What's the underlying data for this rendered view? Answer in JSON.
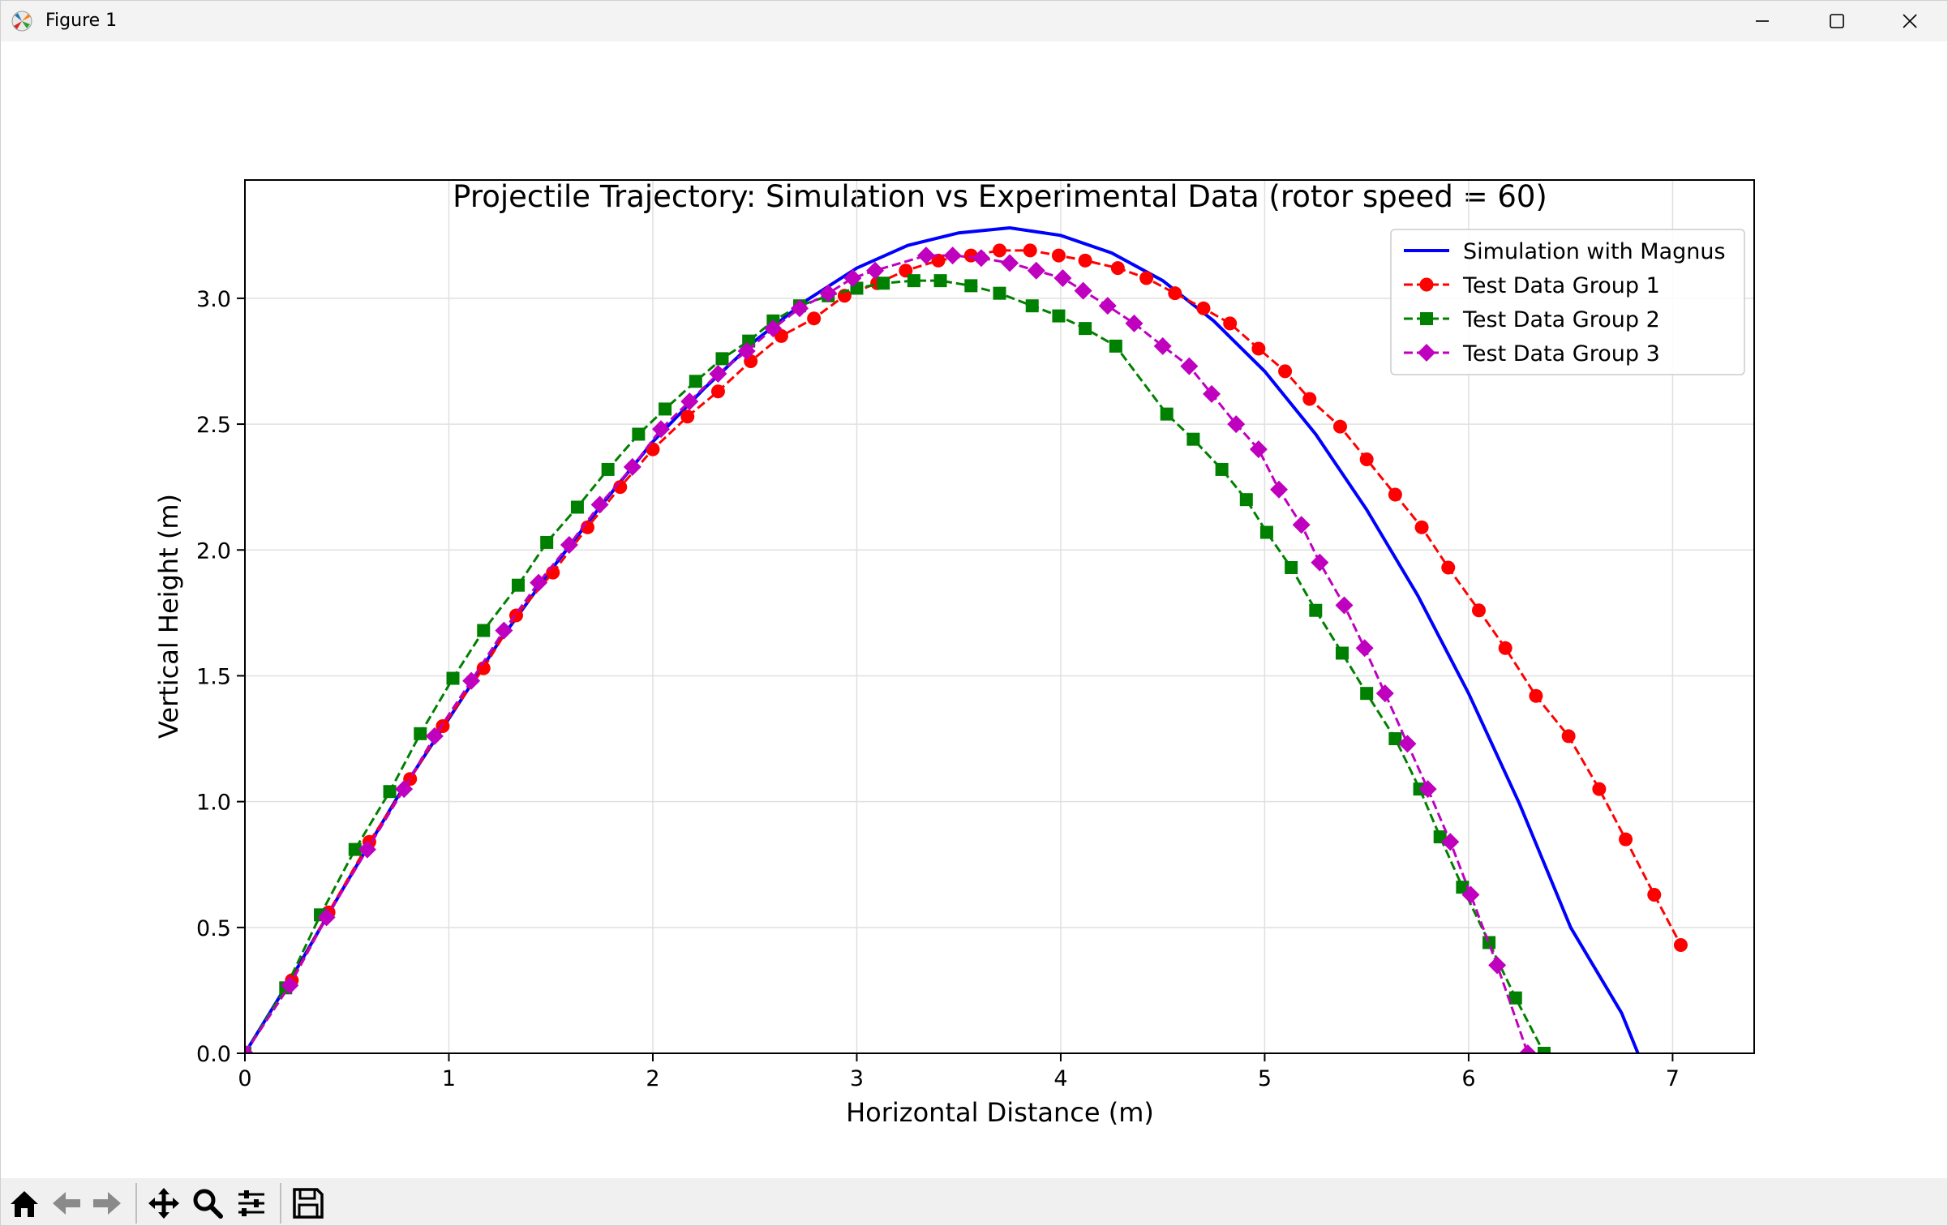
{
  "window": {
    "title": "Figure 1",
    "controls": [
      "minimize-icon",
      "maximize-icon",
      "close-icon"
    ]
  },
  "toolbar": {
    "buttons": [
      "home-icon",
      "back-arrow-icon",
      "forward-arrow-icon",
      "pan-icon",
      "zoom-icon",
      "configure-subplots-icon",
      "save-icon"
    ]
  },
  "chart_data": {
    "type": "line",
    "title": "Projectile Trajectory: Simulation vs Experimental Data (rotor speed = 60)",
    "xlabel": "Horizontal Distance (m)",
    "ylabel": "Vertical Height (m)",
    "xlim": [
      0,
      7.4
    ],
    "ylim": [
      0,
      3.47
    ],
    "xticks": [
      0,
      1,
      2,
      3,
      4,
      5,
      6,
      7
    ],
    "yticks": [
      0.0,
      0.5,
      1.0,
      1.5,
      2.0,
      2.5,
      3.0
    ],
    "xtick_labels": [
      "0",
      "1",
      "2",
      "3",
      "4",
      "5",
      "6",
      "7"
    ],
    "ytick_labels": [
      "0.0",
      "0.5",
      "1.0",
      "1.5",
      "2.0",
      "2.5",
      "3.0"
    ],
    "grid": true,
    "legend_position": "upper right",
    "series": [
      {
        "name": "Simulation with Magnus",
        "color": "#0000ff",
        "style": "solid",
        "marker": "none",
        "points": [
          [
            0,
            0
          ],
          [
            0.25,
            0.33
          ],
          [
            0.5,
            0.68
          ],
          [
            0.75,
            1.02
          ],
          [
            1.0,
            1.33
          ],
          [
            1.25,
            1.64
          ],
          [
            1.5,
            1.92
          ],
          [
            1.75,
            2.18
          ],
          [
            2.0,
            2.43
          ],
          [
            2.25,
            2.64
          ],
          [
            2.5,
            2.83
          ],
          [
            2.75,
            2.99
          ],
          [
            3.0,
            3.12
          ],
          [
            3.25,
            3.21
          ],
          [
            3.5,
            3.26
          ],
          [
            3.75,
            3.28
          ],
          [
            4.0,
            3.25
          ],
          [
            4.25,
            3.18
          ],
          [
            4.5,
            3.07
          ],
          [
            4.75,
            2.91
          ],
          [
            5.0,
            2.71
          ],
          [
            5.25,
            2.46
          ],
          [
            5.5,
            2.16
          ],
          [
            5.75,
            1.82
          ],
          [
            6.0,
            1.43
          ],
          [
            6.25,
            0.99
          ],
          [
            6.5,
            0.5
          ],
          [
            6.75,
            0.16
          ],
          [
            6.83,
            0.0
          ]
        ]
      },
      {
        "name": "Test Data Group 1",
        "color": "#ff0000",
        "style": "dashed",
        "marker": "circle",
        "points": [
          [
            0,
            0
          ],
          [
            0.23,
            0.29
          ],
          [
            0.41,
            0.56
          ],
          [
            0.61,
            0.84
          ],
          [
            0.81,
            1.09
          ],
          [
            0.97,
            1.3
          ],
          [
            1.17,
            1.53
          ],
          [
            1.33,
            1.74
          ],
          [
            1.51,
            1.91
          ],
          [
            1.68,
            2.09
          ],
          [
            1.84,
            2.25
          ],
          [
            2.0,
            2.4
          ],
          [
            2.17,
            2.53
          ],
          [
            2.32,
            2.63
          ],
          [
            2.48,
            2.75
          ],
          [
            2.63,
            2.85
          ],
          [
            2.79,
            2.92
          ],
          [
            2.94,
            3.01
          ],
          [
            3.1,
            3.06
          ],
          [
            3.24,
            3.11
          ],
          [
            3.4,
            3.15
          ],
          [
            3.56,
            3.17
          ],
          [
            3.7,
            3.19
          ],
          [
            3.85,
            3.19
          ],
          [
            3.99,
            3.17
          ],
          [
            4.12,
            3.15
          ],
          [
            4.28,
            3.12
          ],
          [
            4.42,
            3.08
          ],
          [
            4.56,
            3.02
          ],
          [
            4.7,
            2.96
          ],
          [
            4.83,
            2.9
          ],
          [
            4.97,
            2.8
          ],
          [
            5.1,
            2.71
          ],
          [
            5.22,
            2.6
          ],
          [
            5.37,
            2.49
          ],
          [
            5.5,
            2.36
          ],
          [
            5.64,
            2.22
          ],
          [
            5.77,
            2.09
          ],
          [
            5.9,
            1.93
          ],
          [
            6.05,
            1.76
          ],
          [
            6.18,
            1.61
          ],
          [
            6.33,
            1.42
          ],
          [
            6.49,
            1.26
          ],
          [
            6.64,
            1.05
          ],
          [
            6.77,
            0.85
          ],
          [
            6.91,
            0.63
          ],
          [
            7.04,
            0.43
          ]
        ]
      },
      {
        "name": "Test Data Group 2",
        "color": "#008000",
        "style": "dashed",
        "marker": "square",
        "points": [
          [
            0,
            0
          ],
          [
            0.2,
            0.26
          ],
          [
            0.37,
            0.55
          ],
          [
            0.54,
            0.81
          ],
          [
            0.71,
            1.04
          ],
          [
            0.86,
            1.27
          ],
          [
            1.02,
            1.49
          ],
          [
            1.17,
            1.68
          ],
          [
            1.34,
            1.86
          ],
          [
            1.48,
            2.03
          ],
          [
            1.63,
            2.17
          ],
          [
            1.78,
            2.32
          ],
          [
            1.93,
            2.46
          ],
          [
            2.06,
            2.56
          ],
          [
            2.21,
            2.67
          ],
          [
            2.34,
            2.76
          ],
          [
            2.47,
            2.83
          ],
          [
            2.59,
            2.91
          ],
          [
            2.72,
            2.97
          ],
          [
            2.86,
            3.01
          ],
          [
            3.0,
            3.04
          ],
          [
            3.13,
            3.06
          ],
          [
            3.28,
            3.07
          ],
          [
            3.41,
            3.07
          ],
          [
            3.56,
            3.05
          ],
          [
            3.7,
            3.02
          ],
          [
            3.86,
            2.97
          ],
          [
            3.99,
            2.93
          ],
          [
            4.12,
            2.88
          ],
          [
            4.27,
            2.81
          ],
          [
            4.52,
            2.54
          ],
          [
            4.65,
            2.44
          ],
          [
            4.79,
            2.32
          ],
          [
            4.91,
            2.2
          ],
          [
            5.01,
            2.07
          ],
          [
            5.13,
            1.93
          ],
          [
            5.25,
            1.76
          ],
          [
            5.38,
            1.59
          ],
          [
            5.5,
            1.43
          ],
          [
            5.64,
            1.25
          ],
          [
            5.76,
            1.05
          ],
          [
            5.86,
            0.86
          ],
          [
            5.97,
            0.66
          ],
          [
            6.1,
            0.44
          ],
          [
            6.23,
            0.22
          ],
          [
            6.37,
            0.0
          ]
        ]
      },
      {
        "name": "Test Data Group 3",
        "color": "#bf00bf",
        "style": "dashed",
        "marker": "diamond",
        "points": [
          [
            0,
            0
          ],
          [
            0.22,
            0.27
          ],
          [
            0.4,
            0.54
          ],
          [
            0.6,
            0.81
          ],
          [
            0.78,
            1.05
          ],
          [
            0.93,
            1.26
          ],
          [
            1.11,
            1.48
          ],
          [
            1.27,
            1.68
          ],
          [
            1.44,
            1.87
          ],
          [
            1.59,
            2.02
          ],
          [
            1.74,
            2.18
          ],
          [
            1.9,
            2.33
          ],
          [
            2.04,
            2.48
          ],
          [
            2.18,
            2.59
          ],
          [
            2.32,
            2.7
          ],
          [
            2.46,
            2.79
          ],
          [
            2.59,
            2.88
          ],
          [
            2.72,
            2.96
          ],
          [
            2.86,
            3.02
          ],
          [
            2.98,
            3.08
          ],
          [
            3.09,
            3.11
          ],
          [
            3.34,
            3.17
          ],
          [
            3.47,
            3.17
          ],
          [
            3.61,
            3.16
          ],
          [
            3.75,
            3.14
          ],
          [
            3.88,
            3.11
          ],
          [
            4.01,
            3.08
          ],
          [
            4.11,
            3.03
          ],
          [
            4.23,
            2.97
          ],
          [
            4.36,
            2.9
          ],
          [
            4.5,
            2.81
          ],
          [
            4.63,
            2.73
          ],
          [
            4.74,
            2.62
          ],
          [
            4.86,
            2.5
          ],
          [
            4.97,
            2.4
          ],
          [
            5.07,
            2.24
          ],
          [
            5.18,
            2.1
          ],
          [
            5.27,
            1.95
          ],
          [
            5.39,
            1.78
          ],
          [
            5.49,
            1.61
          ],
          [
            5.59,
            1.43
          ],
          [
            5.7,
            1.23
          ],
          [
            5.8,
            1.05
          ],
          [
            5.91,
            0.84
          ],
          [
            6.01,
            0.63
          ],
          [
            6.14,
            0.35
          ],
          [
            6.29,
            0.0
          ]
        ]
      }
    ]
  }
}
